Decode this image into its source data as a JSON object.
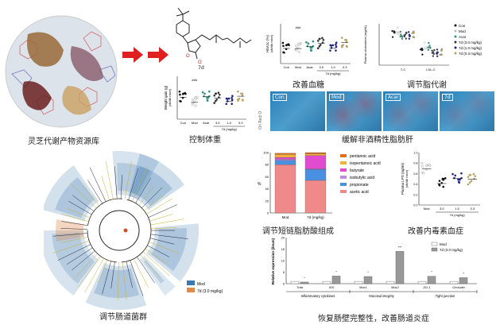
{
  "captions": {
    "library": "灵芝代谢产物资源库",
    "weight": "控制体重",
    "glucose": "改善血糖",
    "lipid": "调节脂代谢",
    "liver": "缓解非酒精性脂肪肝",
    "microbiota": "调节肠道菌群",
    "scfa": "调节短链脂肪酸组成",
    "lps": "改善内毒素血症",
    "intestine": "恢复肠壁完整性，改善肠道炎症"
  },
  "compound": {
    "label": "7d"
  },
  "weight_plot": {
    "ylabel": "Weight gain (g)",
    "ysub": "(db/db mice)",
    "groups": [
      "Con",
      "Mod",
      "Acar",
      "3.0",
      "1.0",
      "0.3"
    ],
    "dose_label": "7d (mg/kg)",
    "ylim": [
      -10,
      15
    ],
    "sig": "###"
  },
  "hba1c_plot": {
    "ylabel": "HbA1c (%)",
    "ysub": "(db/db mice)",
    "groups": [
      "Con",
      "Mod",
      "Acar",
      "3.0",
      "1.0",
      "0.3"
    ],
    "dose_label": "7d (mg/kg)",
    "ylim": [
      0,
      15
    ],
    "sig": "###"
  },
  "lipid_plot": {
    "ylabel": "Plasma cholesterol (mg/dL)",
    "categories": [
      "T-C",
      "LDL-C"
    ],
    "legend": [
      "Con",
      "Mod",
      "Acar",
      "7d (3.0 mg/kg)",
      "7d (1.0 mg/kg)",
      "7d (0.3 mg/kg)"
    ],
    "colors": [
      "#111111",
      "#bbbbbb",
      "#2f8f7f",
      "#333333",
      "#1a237e",
      "#b8a060"
    ]
  },
  "histology": {
    "ylabel": "Oil Red O",
    "panels": [
      "Con",
      "Mod",
      "Acar",
      "7d"
    ]
  },
  "cladogram": {
    "legend": [
      {
        "label": "Mod",
        "color": "#3a78b0"
      },
      {
        "label": "7d (3.0 mg/kg)",
        "color": "#e08a4a"
      }
    ]
  },
  "scfa_chart": {
    "type": "bar",
    "stacked": true,
    "ylabel": "%",
    "ylim": [
      0,
      100
    ],
    "yticks": [
      0,
      20,
      40,
      60,
      80,
      100
    ],
    "categories": [
      "Mod",
      "7d (mg/kg)"
    ],
    "series": [
      {
        "name": "acetic acid",
        "color": "#f08a8a",
        "values": [
          80,
          54
        ]
      },
      {
        "name": "propionate",
        "color": "#4a90e2",
        "values": [
          7,
          18
        ]
      },
      {
        "name": "isobutylic acid",
        "color": "#c58be0",
        "values": [
          2,
          1
        ]
      },
      {
        "name": "butyrate",
        "color": "#e04bd0",
        "values": [
          3,
          22
        ]
      },
      {
        "name": "isopentanoic acid",
        "color": "#f5b040",
        "values": [
          5,
          3
        ]
      },
      {
        "name": "pentanoic acid",
        "color": "#e07020",
        "values": [
          2,
          2
        ]
      }
    ]
  },
  "lps_plot": {
    "ylabel": "Plasma LPS (ng/ml)",
    "ysub": "(db/db mice)",
    "groups": [
      "Mod",
      "3.0",
      "1.0",
      "0.3"
    ],
    "dose_label": "7d (mg/kg)",
    "ylim": [
      0,
      1.0
    ],
    "yticks": [
      "0.0",
      "0.2",
      "0.4",
      "0.6",
      "0.8",
      "1.0"
    ],
    "means": [
      0.69,
      0.41,
      0.51,
      0.49
    ]
  },
  "expression_chart": {
    "type": "bar",
    "ylabel": "Relative expression (ileum)",
    "ylim": [
      0,
      20
    ],
    "yticks": [
      0,
      5,
      10,
      15,
      20
    ],
    "categories": [
      "Tnfa",
      "Il10",
      "Muc1",
      "Muc2",
      "ZO-1",
      "Occludin"
    ],
    "series": [
      {
        "name": "Mod",
        "color": "#ffffff",
        "values": [
          1,
          1,
          1,
          1,
          1,
          1
        ]
      },
      {
        "name": "7d (3.0 mg/kg)",
        "color": "#999999",
        "values": [
          0.7,
          3.3,
          3.1,
          14,
          3.2,
          2.6
        ]
      }
    ],
    "significance": [
      "*",
      "*",
      "*",
      "***",
      "*",
      "*"
    ],
    "groups": [
      "Inflammatory cytokines",
      "Mucosal integrity",
      "Tight junction"
    ]
  }
}
